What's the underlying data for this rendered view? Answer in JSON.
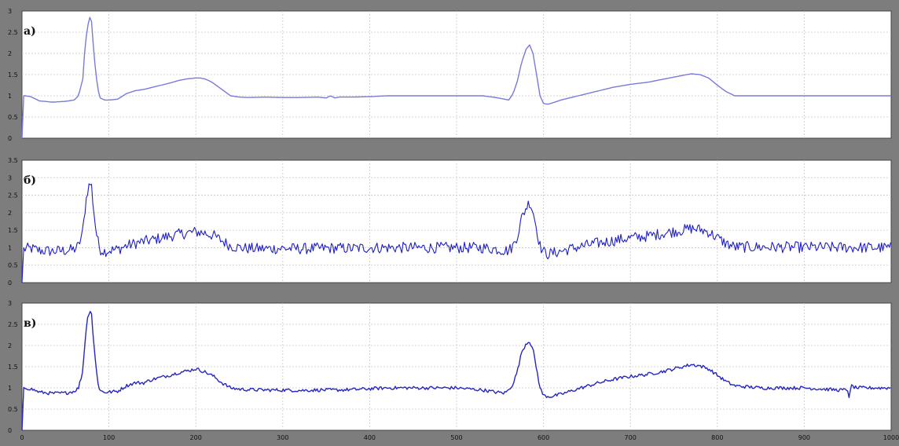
{
  "chart_data": [
    {
      "type": "line",
      "panel_label": "а)",
      "ylim": [
        0,
        3
      ],
      "yticks": [
        0,
        0.5,
        1,
        1.5,
        2,
        2.5,
        3
      ],
      "ytick_labels": [
        "0",
        "0.5",
        "1",
        "1.5",
        "2",
        "2.5",
        "3"
      ],
      "xlim": [
        0,
        1000
      ],
      "grid": true,
      "color": "#7a7ad8",
      "noise": 0,
      "series": [
        {
          "x": [
            0,
            2,
            4,
            10,
            20,
            35,
            50,
            60,
            65,
            70,
            72,
            75,
            78,
            80,
            82,
            85,
            88,
            90,
            95,
            100,
            110,
            120,
            130,
            140,
            150,
            160,
            170,
            180,
            190,
            200,
            205,
            210,
            215,
            220,
            230,
            240,
            250,
            260,
            280,
            300,
            320,
            340,
            350,
            355,
            360,
            365,
            380,
            400,
            420,
            450,
            500,
            530,
            545,
            555,
            560,
            565,
            570,
            575,
            580,
            584,
            588,
            592,
            596,
            600,
            605,
            610,
            620,
            640,
            660,
            680,
            700,
            720,
            740,
            760,
            770,
            780,
            790,
            800,
            810,
            820,
            1000
          ],
          "y": [
            0,
            1.0,
            1.0,
            0.98,
            0.88,
            0.85,
            0.87,
            0.9,
            1.0,
            1.4,
            2.0,
            2.6,
            2.85,
            2.75,
            2.2,
            1.5,
            1.1,
            0.95,
            0.9,
            0.9,
            0.92,
            1.05,
            1.12,
            1.15,
            1.2,
            1.25,
            1.3,
            1.36,
            1.4,
            1.42,
            1.42,
            1.4,
            1.36,
            1.3,
            1.15,
            1.0,
            0.97,
            0.96,
            0.97,
            0.96,
            0.96,
            0.97,
            0.95,
            1.0,
            0.95,
            0.97,
            0.97,
            0.98,
            1.0,
            1.0,
            1.0,
            1.0,
            0.96,
            0.92,
            0.9,
            1.05,
            1.35,
            1.8,
            2.1,
            2.2,
            2.0,
            1.5,
            1.0,
            0.82,
            0.8,
            0.83,
            0.9,
            1.0,
            1.1,
            1.2,
            1.27,
            1.32,
            1.4,
            1.48,
            1.52,
            1.5,
            1.42,
            1.25,
            1.1,
            1.0,
            1.0
          ]
        }
      ]
    },
    {
      "type": "line",
      "panel_label": "б)",
      "ylim": [
        0,
        3.5
      ],
      "yticks": [
        0,
        0.5,
        1,
        1.5,
        2,
        2.5,
        3,
        3.5
      ],
      "ytick_labels": [
        "0",
        "0.5",
        "1",
        "1.5",
        "2",
        "2.5",
        "3",
        "3.5"
      ],
      "xlim": [
        0,
        1000
      ],
      "grid": true,
      "color": "#1e1ec8",
      "noise": 0.16,
      "series": [
        {
          "x": [
            0,
            2,
            4,
            10,
            20,
            35,
            50,
            60,
            65,
            70,
            72,
            75,
            78,
            80,
            82,
            85,
            88,
            90,
            95,
            100,
            110,
            120,
            130,
            140,
            150,
            160,
            170,
            180,
            190,
            200,
            210,
            220,
            230,
            240,
            250,
            260,
            280,
            300,
            320,
            340,
            360,
            380,
            400,
            420,
            450,
            500,
            530,
            545,
            555,
            560,
            565,
            570,
            575,
            580,
            584,
            588,
            592,
            596,
            600,
            605,
            610,
            620,
            640,
            660,
            680,
            700,
            720,
            740,
            760,
            770,
            780,
            790,
            800,
            810,
            820,
            1000
          ],
          "y": [
            0,
            0.95,
            0.97,
            0.98,
            0.92,
            0.9,
            0.92,
            0.95,
            1.05,
            1.45,
            2.0,
            2.6,
            2.85,
            2.75,
            2.2,
            1.5,
            1.1,
            0.95,
            0.9,
            0.92,
            0.95,
            1.05,
            1.12,
            1.18,
            1.22,
            1.28,
            1.33,
            1.38,
            1.42,
            1.45,
            1.42,
            1.35,
            1.2,
            1.05,
            1.0,
            0.98,
            0.97,
            0.98,
            0.97,
            0.98,
            0.99,
            0.98,
            1.0,
            1.0,
            1.0,
            1.0,
            1.0,
            0.96,
            0.92,
            0.92,
            1.05,
            1.35,
            1.85,
            2.15,
            2.3,
            2.05,
            1.55,
            1.05,
            0.88,
            0.82,
            0.84,
            0.9,
            1.02,
            1.12,
            1.2,
            1.28,
            1.33,
            1.42,
            1.5,
            1.55,
            1.52,
            1.45,
            1.28,
            1.12,
            1.02,
            1.0
          ]
        }
      ]
    },
    {
      "type": "line",
      "panel_label": "в)",
      "ylim": [
        0,
        3
      ],
      "yticks": [
        0,
        0.5,
        1,
        1.5,
        2,
        2.5,
        3
      ],
      "ytick_labels": [
        "0",
        "0.5",
        "1",
        "1.5",
        "2",
        "2.5",
        "3"
      ],
      "xlim": [
        0,
        1000
      ],
      "xticks": [
        0,
        100,
        200,
        300,
        400,
        500,
        600,
        700,
        800,
        900,
        1000
      ],
      "xtick_labels": [
        "0",
        "100",
        "200",
        "300",
        "400",
        "500",
        "600",
        "700",
        "800",
        "900",
        "1000"
      ],
      "grid": true,
      "color": "#2626c0",
      "noise": 0.04,
      "series": [
        {
          "x": [
            0,
            2,
            4,
            10,
            20,
            35,
            50,
            60,
            65,
            70,
            72,
            75,
            78,
            80,
            82,
            85,
            88,
            90,
            95,
            100,
            110,
            120,
            130,
            140,
            150,
            160,
            170,
            180,
            190,
            200,
            205,
            210,
            220,
            230,
            240,
            250,
            260,
            280,
            300,
            320,
            340,
            360,
            380,
            400,
            420,
            450,
            500,
            530,
            545,
            555,
            560,
            565,
            570,
            575,
            580,
            584,
            588,
            592,
            596,
            600,
            605,
            610,
            620,
            640,
            660,
            680,
            700,
            720,
            740,
            760,
            770,
            780,
            790,
            800,
            810,
            820,
            850,
            900,
            940,
            950,
            952,
            954,
            960,
            1000
          ],
          "y": [
            0,
            0.98,
            1.0,
            0.98,
            0.9,
            0.87,
            0.88,
            0.92,
            1.0,
            1.4,
            2.0,
            2.6,
            2.85,
            2.75,
            2.2,
            1.5,
            1.05,
            0.93,
            0.9,
            0.9,
            0.92,
            1.05,
            1.12,
            1.12,
            1.2,
            1.25,
            1.3,
            1.36,
            1.4,
            1.45,
            1.42,
            1.38,
            1.28,
            1.12,
            1.0,
            0.97,
            0.96,
            0.95,
            0.95,
            0.94,
            0.95,
            0.95,
            0.96,
            0.98,
            1.0,
            1.0,
            1.0,
            0.95,
            0.9,
            0.88,
            0.95,
            1.1,
            1.4,
            1.85,
            2.05,
            2.1,
            1.9,
            1.45,
            1.0,
            0.82,
            0.8,
            0.8,
            0.85,
            0.98,
            1.1,
            1.2,
            1.27,
            1.32,
            1.4,
            1.5,
            1.55,
            1.52,
            1.45,
            1.3,
            1.15,
            1.05,
            1.0,
            1.0,
            0.95,
            0.95,
            0.75,
            1.05,
            1.0,
            1.0
          ]
        }
      ]
    }
  ]
}
